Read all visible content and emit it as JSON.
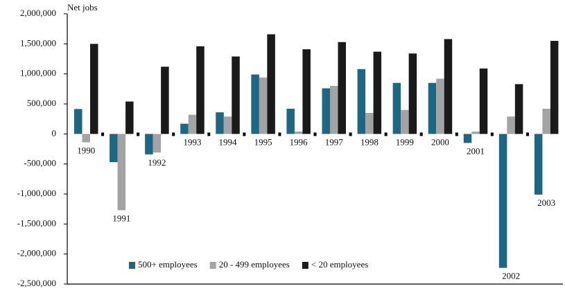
{
  "chart_data": {
    "type": "bar",
    "y_label": "Net jobs",
    "categories": [
      "1990",
      "1991",
      "1992",
      "1993",
      "1994",
      "1995",
      "1996",
      "1997",
      "1998",
      "1999",
      "2000",
      "2001",
      "2002",
      "2003"
    ],
    "series": [
      {
        "name": "500+ employees",
        "color": "#1b6784",
        "values": [
          415000,
          -470000,
          -340000,
          170000,
          360000,
          990000,
          420000,
          760000,
          1080000,
          850000,
          850000,
          -150000,
          -2230000,
          -1010000
        ]
      },
      {
        "name": "20 - 499 employees",
        "color": "#a3a3a3",
        "values": [
          -140000,
          -1270000,
          -310000,
          320000,
          290000,
          940000,
          40000,
          800000,
          350000,
          400000,
          920000,
          40000,
          290000,
          420000
        ]
      },
      {
        "name": "< 20 employees",
        "color": "#1a1a1a",
        "values": [
          1500000,
          540000,
          1120000,
          1460000,
          1290000,
          1660000,
          1410000,
          1530000,
          1370000,
          1340000,
          1580000,
          1090000,
          830000,
          1550000
        ]
      }
    ],
    "ylim": [
      -2500000,
      2000000
    ],
    "yticks": [
      {
        "value": -2500000,
        "label": "-2,500,000"
      },
      {
        "value": -2000000,
        "label": "-2,000,000"
      },
      {
        "value": -1500000,
        "label": "-1,500,000"
      },
      {
        "value": -1000000,
        "label": "-1,000,000"
      },
      {
        "value": -500000,
        "label": "-500,000"
      },
      0,
      {
        "value": 500000,
        "label": "500,000"
      },
      {
        "value": 1000000,
        "label": "1,000,000"
      },
      {
        "value": 1500000,
        "label": "1,500,000"
      },
      {
        "value": 2000000,
        "label": "2,000,000"
      }
    ],
    "legend": "bottom-center"
  }
}
